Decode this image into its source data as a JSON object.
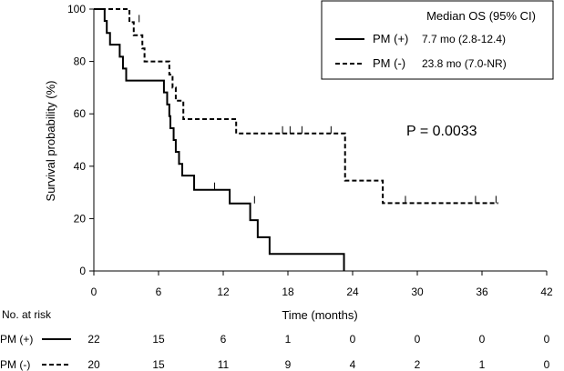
{
  "chart_data": {
    "type": "line",
    "subtype": "kaplan-meier",
    "xlabel": "Time (months)",
    "ylabel": "Survival probability (%)",
    "xlim": [
      0,
      42
    ],
    "ylim": [
      0,
      100
    ],
    "x_ticks": [
      0,
      6,
      12,
      18,
      24,
      30,
      36,
      42
    ],
    "y_ticks": [
      0,
      20,
      40,
      60,
      80,
      100
    ],
    "grid": false,
    "legend": {
      "placement": "top-right",
      "header": "Median OS (95% CI)"
    },
    "annotation": "P = 0.0033",
    "series": [
      {
        "name": "PM (+)",
        "line_style": "solid",
        "median_os": "7.7 mo (2.8-12.4)",
        "steps": [
          [
            0,
            100
          ],
          [
            1.0,
            95.5
          ],
          [
            1.2,
            90.9
          ],
          [
            1.5,
            86.4
          ],
          [
            2.4,
            81.8
          ],
          [
            2.7,
            77.3
          ],
          [
            3.0,
            72.7
          ],
          [
            6.5,
            68.2
          ],
          [
            6.8,
            63.6
          ],
          [
            7.0,
            59.1
          ],
          [
            7.1,
            54.5
          ],
          [
            7.4,
            50.0
          ],
          [
            7.6,
            45.5
          ],
          [
            7.9,
            40.9
          ],
          [
            8.2,
            36.4
          ],
          [
            9.3,
            31.0
          ],
          [
            12.6,
            25.8
          ],
          [
            14.5,
            19.4
          ],
          [
            15.2,
            12.9
          ],
          [
            16.3,
            6.5
          ],
          [
            23.2,
            0
          ]
        ],
        "end_x": 23.2,
        "censored": [
          [
            11.2,
            31.0
          ],
          [
            14.9,
            25.8
          ]
        ]
      },
      {
        "name": "PM (-)",
        "line_style": "dashed",
        "median_os": "23.8 mo (7.0-NR)",
        "steps": [
          [
            0,
            100
          ],
          [
            3.3,
            95.0
          ],
          [
            3.7,
            90.0
          ],
          [
            4.5,
            85.0
          ],
          [
            4.7,
            80.0
          ],
          [
            7.0,
            75.0
          ],
          [
            7.3,
            70.0
          ],
          [
            7.6,
            65.0
          ],
          [
            8.3,
            58.0
          ],
          [
            13.2,
            52.5
          ],
          [
            23.3,
            34.5
          ],
          [
            26.8,
            25.9
          ]
        ],
        "end_x": 37.5,
        "censored": [
          [
            4.2,
            95.0
          ],
          [
            17.5,
            52.5
          ],
          [
            18.2,
            52.5
          ],
          [
            19.3,
            52.5
          ],
          [
            22.0,
            52.5
          ],
          [
            28.9,
            25.9
          ],
          [
            35.4,
            25.9
          ],
          [
            37.3,
            25.9
          ]
        ]
      }
    ],
    "risk_table": {
      "title": "No. at risk",
      "time_points": [
        0,
        6,
        12,
        18,
        24,
        30,
        36,
        42
      ],
      "rows": [
        {
          "name": "PM (+)",
          "line_style": "solid",
          "values": [
            22,
            15,
            6,
            1,
            0,
            0,
            0,
            0
          ]
        },
        {
          "name": "PM (-)",
          "line_style": "dashed",
          "values": [
            20,
            15,
            11,
            9,
            4,
            2,
            1,
            0
          ]
        }
      ]
    }
  }
}
